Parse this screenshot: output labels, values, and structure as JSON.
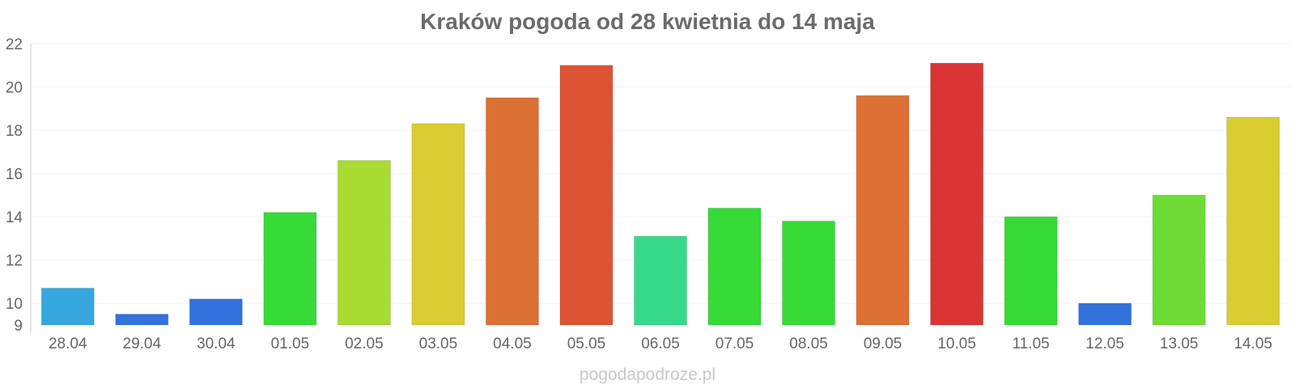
{
  "chart_data": {
    "type": "bar",
    "title": "Kraków pogoda od 28 kwietnia do 14 maja",
    "xlabel": "",
    "ylabel": "",
    "ylim": [
      9,
      22
    ],
    "yticks": [
      "9",
      "10",
      "12",
      "14",
      "16",
      "18",
      "20",
      "22"
    ],
    "categories": [
      "28.04",
      "29.04",
      "30.04",
      "01.05",
      "02.05",
      "03.05",
      "04.05",
      "05.05",
      "06.05",
      "07.05",
      "08.05",
      "09.05",
      "10.05",
      "11.05",
      "12.05",
      "13.05",
      "14.05"
    ],
    "values": [
      10.7,
      9.5,
      10.2,
      14.2,
      16.6,
      18.3,
      19.5,
      21.0,
      13.1,
      14.4,
      13.8,
      19.6,
      21.1,
      14.0,
      10.0,
      15.0,
      18.6
    ],
    "colors": [
      "#35a7de",
      "#3172dc",
      "#3172dc",
      "#37db37",
      "#a8dc31",
      "#dacd31",
      "#dd7034",
      "#dd5432",
      "#37da8a",
      "#37db37",
      "#37db37",
      "#dd7034",
      "#db3434",
      "#37db37",
      "#3172dc",
      "#6edc35",
      "#dacd31"
    ],
    "grid": true,
    "legend": "none"
  },
  "watermark": "pogodapodroze.pl"
}
